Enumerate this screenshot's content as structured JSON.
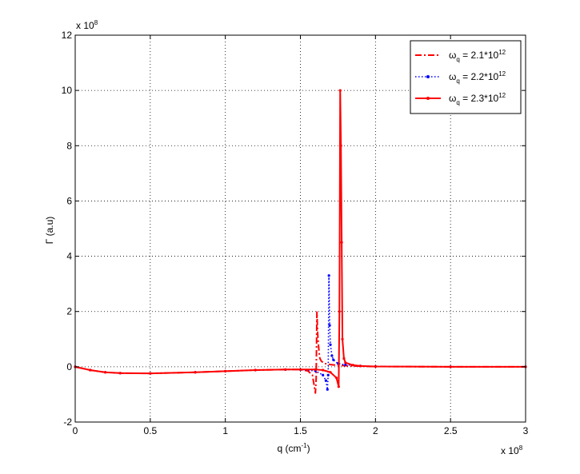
{
  "chart_data": {
    "type": "line",
    "title": "",
    "xlabel": "q (cm",
    "xlabel_sup": "-1",
    "xlabel_close": ")",
    "ylabel": "Γ (a.u)",
    "x_multiplier": "x 10",
    "x_multiplier_exp": "8",
    "y_multiplier": "x 10",
    "y_multiplier_exp": "8",
    "xlim": [
      0,
      3
    ],
    "ylim": [
      -2,
      12
    ],
    "xticks": [
      "0",
      "0.5",
      "1",
      "1.5",
      "2",
      "2.5",
      "3"
    ],
    "yticks": [
      "-2",
      "0",
      "2",
      "4",
      "6",
      "8",
      "10",
      "12"
    ],
    "grid": true,
    "legend_position": "top-right",
    "series": [
      {
        "name": "ω",
        "name_sub": "q",
        "name_rest": " = 2.1*10",
        "name_sup": "12",
        "color": "#ff0000",
        "style": "dash-dot",
        "x": [
          0,
          0.1,
          0.2,
          0.3,
          0.5,
          0.8,
          1.0,
          1.2,
          1.4,
          1.5,
          1.55,
          1.58,
          1.6,
          1.605,
          1.61,
          1.615,
          1.62,
          1.625,
          1.63,
          1.64,
          1.66,
          1.7,
          1.75,
          1.8,
          1.9,
          2.0,
          2.5,
          3.0
        ],
        "y": [
          0,
          -0.12,
          -0.2,
          -0.23,
          -0.24,
          -0.2,
          -0.16,
          -0.12,
          -0.1,
          -0.1,
          -0.15,
          -0.3,
          -0.95,
          -0.4,
          1.98,
          1.2,
          0.8,
          0.5,
          0.3,
          0.2,
          0.12,
          0.08,
          0.05,
          0.04,
          0.02,
          0.01,
          0,
          0
        ]
      },
      {
        "name": "ω",
        "name_sub": "q",
        "name_rest": " = 2.2*10",
        "name_sup": "12",
        "color": "#0000ff",
        "style": "dotted",
        "x": [
          0,
          0.1,
          0.2,
          0.3,
          0.5,
          0.8,
          1.0,
          1.2,
          1.4,
          1.5,
          1.6,
          1.65,
          1.67,
          1.68,
          1.685,
          1.69,
          1.695,
          1.7,
          1.71,
          1.72,
          1.75,
          1.8,
          1.9,
          2.0,
          2.5,
          3.0
        ],
        "y": [
          0,
          -0.12,
          -0.2,
          -0.23,
          -0.24,
          -0.2,
          -0.16,
          -0.12,
          -0.1,
          -0.1,
          -0.15,
          -0.3,
          -0.5,
          -0.82,
          -0.3,
          3.3,
          1.5,
          0.8,
          0.4,
          0.25,
          0.12,
          0.07,
          0.03,
          0.01,
          0,
          0
        ]
      },
      {
        "name": "ω",
        "name_sub": "q",
        "name_rest": " = 2.3*10",
        "name_sup": "12",
        "color": "#ff0000",
        "style": "solid-point",
        "x": [
          0,
          0.1,
          0.2,
          0.3,
          0.5,
          0.8,
          1.0,
          1.2,
          1.4,
          1.5,
          1.6,
          1.65,
          1.7,
          1.74,
          1.755,
          1.76,
          1.765,
          1.77,
          1.775,
          1.78,
          1.79,
          1.8,
          1.85,
          1.9,
          2.0,
          2.5,
          3.0
        ],
        "y": [
          0,
          -0.12,
          -0.2,
          -0.23,
          -0.24,
          -0.2,
          -0.16,
          -0.12,
          -0.1,
          -0.1,
          -0.1,
          -0.12,
          -0.2,
          -0.4,
          -0.72,
          2.0,
          10.0,
          8.0,
          4.5,
          1.0,
          0.3,
          0.15,
          0.06,
          0.03,
          0.01,
          0,
          0
        ]
      }
    ]
  }
}
